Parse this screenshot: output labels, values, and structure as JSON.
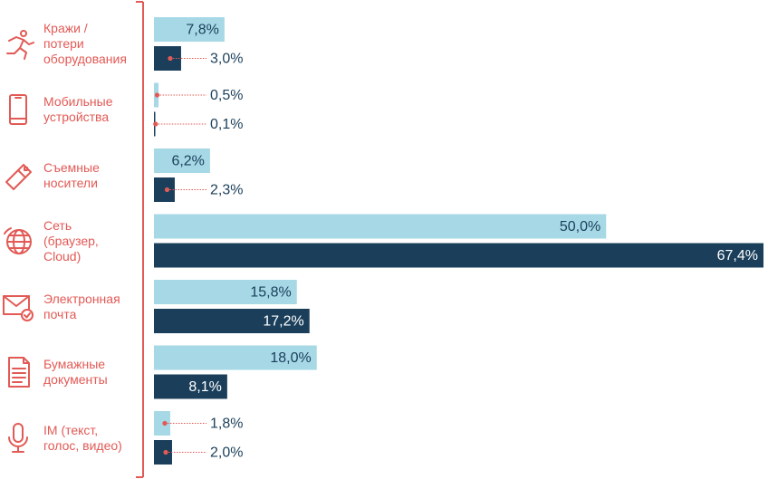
{
  "colors": {
    "accent": "#e25a55",
    "series_light": "#a6d8e6",
    "series_dark": "#1b3f5b",
    "value_text": "#1b3f5b",
    "value_text_on_dark": "#ffffff"
  },
  "chart_data": {
    "type": "bar",
    "orientation": "horizontal",
    "title": "",
    "xlabel": "",
    "ylabel": "",
    "xlim": [
      0,
      67.4
    ],
    "grid": false,
    "legend": "none",
    "categories": [
      "Кражи /\nпотери\nоборудования",
      "Мобильные\nустройства",
      "Съемные\nносители",
      "Сеть\n(браузер,\nCloud)",
      "Электронная\nпочта",
      "Бумажные\nдокументы",
      "IM (текст,\nголос, видео)"
    ],
    "category_icons": [
      "running-person-icon",
      "smartphone-icon",
      "usb-drive-icon",
      "globe-network-icon",
      "envelope-check-icon",
      "document-icon",
      "microphone-icon"
    ],
    "series": [
      {
        "values": [
          7.8,
          0.5,
          6.2,
          50.0,
          15.8,
          18.0,
          1.8
        ],
        "labels": [
          "7,8%",
          "0,5%",
          "6,2%",
          "50,0%",
          "15,8%",
          "18,0%",
          "1,8%"
        ]
      },
      {
        "values": [
          3.0,
          0.1,
          2.3,
          67.4,
          17.2,
          8.1,
          2.0
        ],
        "labels": [
          "3,0%",
          "0,1%",
          "2,3%",
          "67,4%",
          "17,2%",
          "8,1%",
          "2,0%"
        ]
      }
    ]
  }
}
